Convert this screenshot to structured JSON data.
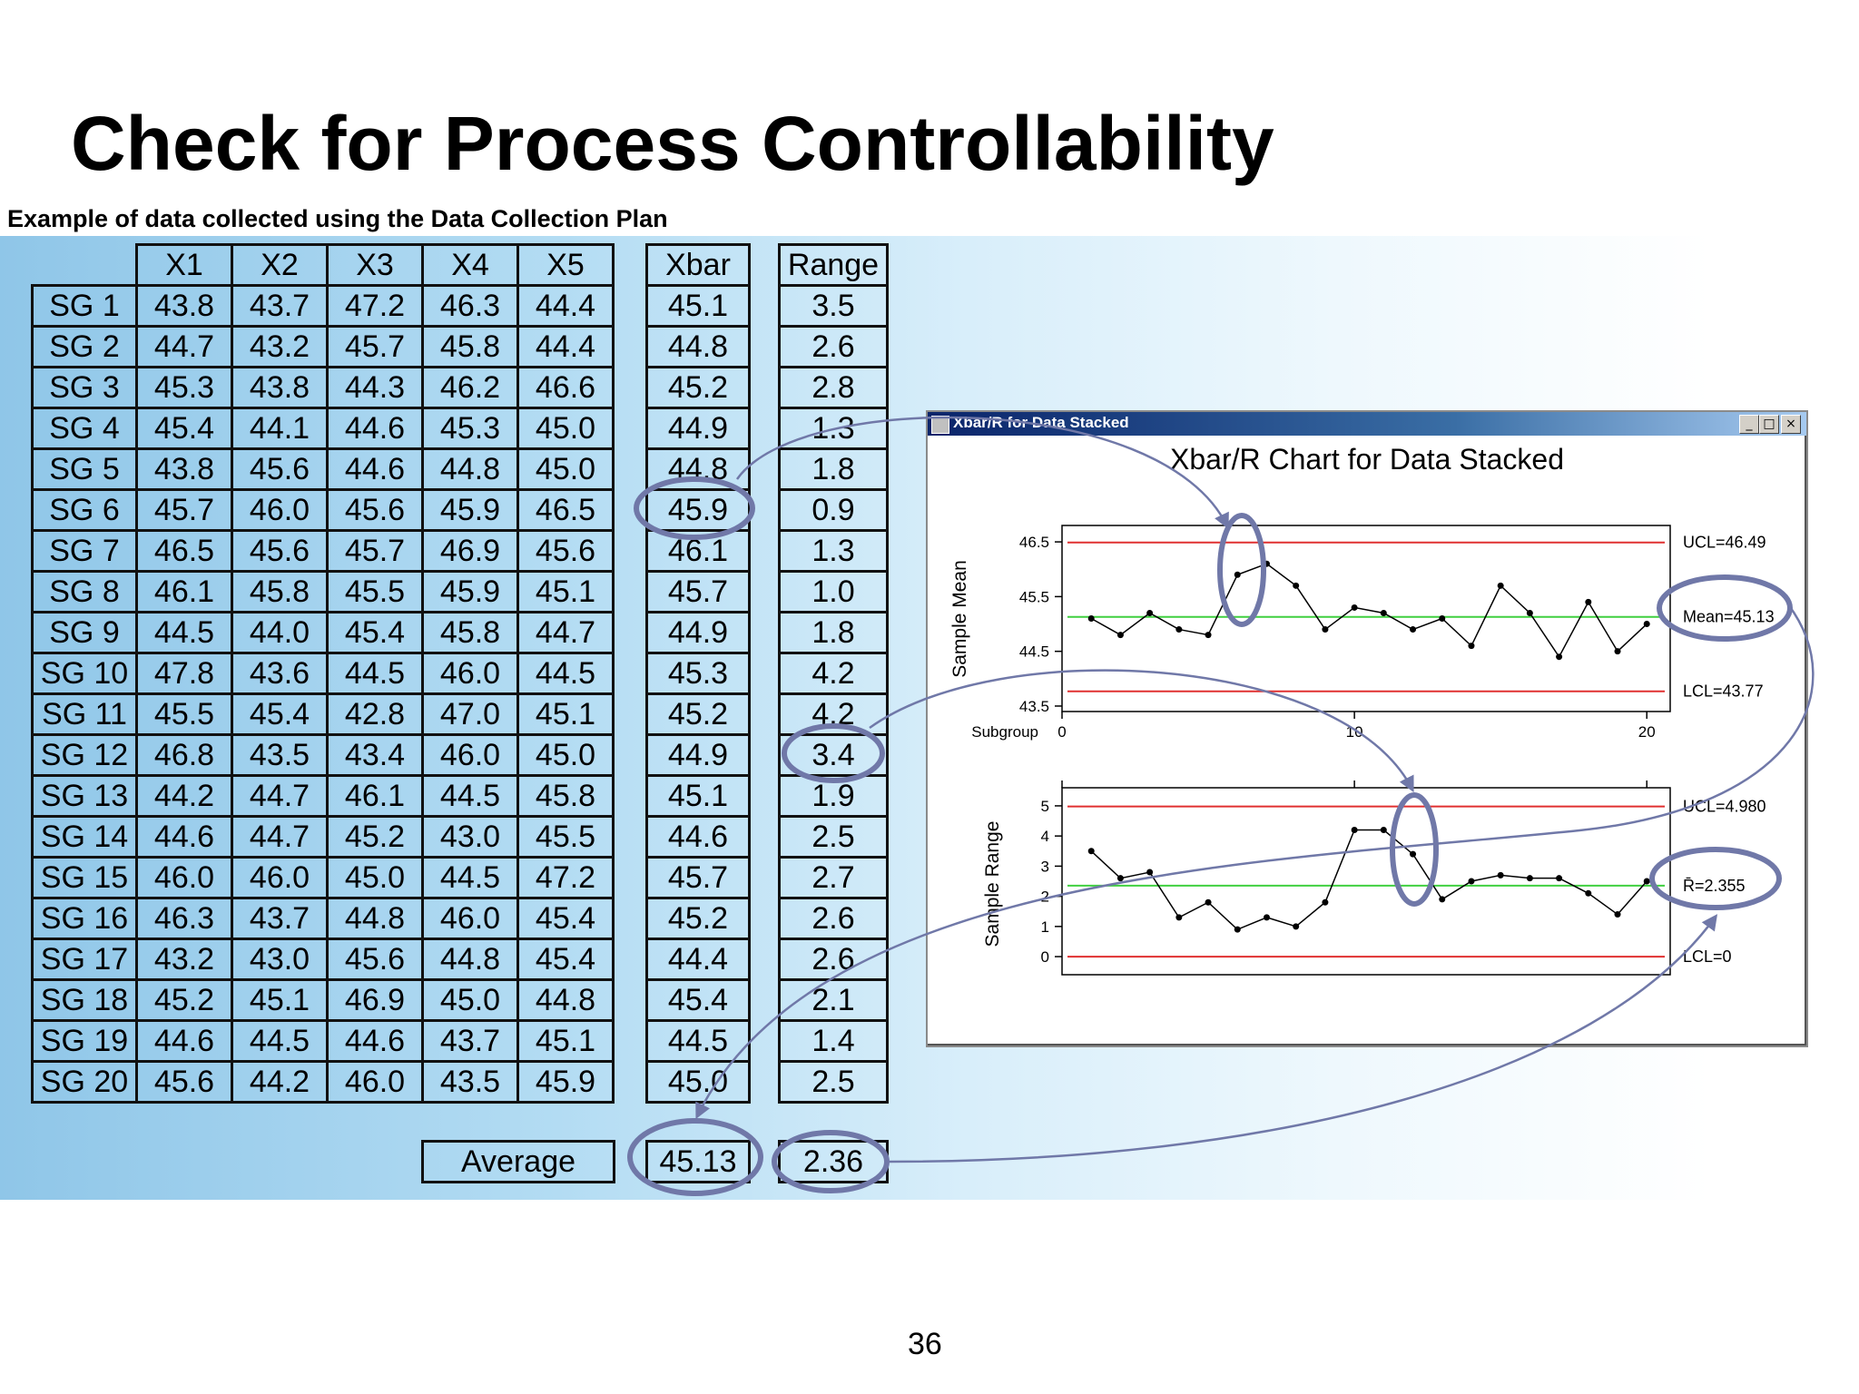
{
  "slide": {
    "title": "Check for Process Controllability",
    "subtitle": "Example of data collected using the Data Collection Plan",
    "page_number": "36"
  },
  "table": {
    "headers": [
      "X1",
      "X2",
      "X3",
      "X4",
      "X5"
    ],
    "xbar_header": "Xbar",
    "range_header": "Range",
    "rows": [
      {
        "label": "SG 1",
        "x": [
          "43.8",
          "43.7",
          "47.2",
          "46.3",
          "44.4"
        ],
        "xbar": "45.1",
        "range": "3.5"
      },
      {
        "label": "SG 2",
        "x": [
          "44.7",
          "43.2",
          "45.7",
          "45.8",
          "44.4"
        ],
        "xbar": "44.8",
        "range": "2.6"
      },
      {
        "label": "SG 3",
        "x": [
          "45.3",
          "43.8",
          "44.3",
          "46.2",
          "46.6"
        ],
        "xbar": "45.2",
        "range": "2.8"
      },
      {
        "label": "SG 4",
        "x": [
          "45.4",
          "44.1",
          "44.6",
          "45.3",
          "45.0"
        ],
        "xbar": "44.9",
        "range": "1.3"
      },
      {
        "label": "SG 5",
        "x": [
          "43.8",
          "45.6",
          "44.6",
          "44.8",
          "45.0"
        ],
        "xbar": "44.8",
        "range": "1.8"
      },
      {
        "label": "SG 6",
        "x": [
          "45.7",
          "46.0",
          "45.6",
          "45.9",
          "46.5"
        ],
        "xbar": "45.9",
        "range": "0.9"
      },
      {
        "label": "SG 7",
        "x": [
          "46.5",
          "45.6",
          "45.7",
          "46.9",
          "45.6"
        ],
        "xbar": "46.1",
        "range": "1.3"
      },
      {
        "label": "SG 8",
        "x": [
          "46.1",
          "45.8",
          "45.5",
          "45.9",
          "45.1"
        ],
        "xbar": "45.7",
        "range": "1.0"
      },
      {
        "label": "SG 9",
        "x": [
          "44.5",
          "44.0",
          "45.4",
          "45.8",
          "44.7"
        ],
        "xbar": "44.9",
        "range": "1.8"
      },
      {
        "label": "SG 10",
        "x": [
          "47.8",
          "43.6",
          "44.5",
          "46.0",
          "44.5"
        ],
        "xbar": "45.3",
        "range": "4.2"
      },
      {
        "label": "SG 11",
        "x": [
          "45.5",
          "45.4",
          "42.8",
          "47.0",
          "45.1"
        ],
        "xbar": "45.2",
        "range": "4.2"
      },
      {
        "label": "SG 12",
        "x": [
          "46.8",
          "43.5",
          "43.4",
          "46.0",
          "45.0"
        ],
        "xbar": "44.9",
        "range": "3.4"
      },
      {
        "label": "SG 13",
        "x": [
          "44.2",
          "44.7",
          "46.1",
          "44.5",
          "45.8"
        ],
        "xbar": "45.1",
        "range": "1.9"
      },
      {
        "label": "SG 14",
        "x": [
          "44.6",
          "44.7",
          "45.2",
          "43.0",
          "45.5"
        ],
        "xbar": "44.6",
        "range": "2.5"
      },
      {
        "label": "SG 15",
        "x": [
          "46.0",
          "46.0",
          "45.0",
          "44.5",
          "47.2"
        ],
        "xbar": "45.7",
        "range": "2.7"
      },
      {
        "label": "SG 16",
        "x": [
          "46.3",
          "43.7",
          "44.8",
          "46.0",
          "45.4"
        ],
        "xbar": "45.2",
        "range": "2.6"
      },
      {
        "label": "SG 17",
        "x": [
          "43.2",
          "43.0",
          "45.6",
          "44.8",
          "45.4"
        ],
        "xbar": "44.4",
        "range": "2.6"
      },
      {
        "label": "SG 18",
        "x": [
          "45.2",
          "45.1",
          "46.9",
          "45.0",
          "44.8"
        ],
        "xbar": "45.4",
        "range": "2.1"
      },
      {
        "label": "SG 19",
        "x": [
          "44.6",
          "44.5",
          "44.6",
          "43.7",
          "45.1"
        ],
        "xbar": "44.5",
        "range": "1.4"
      },
      {
        "label": "SG 20",
        "x": [
          "45.6",
          "44.2",
          "46.0",
          "43.5",
          "45.9"
        ],
        "xbar": "45.0",
        "range": "2.5"
      }
    ],
    "average_label": "Average",
    "average_xbar": "45.13",
    "average_range": "2.36"
  },
  "window": {
    "title_bar": "Xbar/R for Data Stacked",
    "minimize_glyph": "_",
    "maximize_glyph": "□",
    "close_glyph": "×",
    "chart_title": "Xbar/R Chart for Data Stacked"
  },
  "chart_data": [
    {
      "type": "line",
      "ylabel": "Sample Mean",
      "xlabel": "Subgroup",
      "x": [
        1,
        2,
        3,
        4,
        5,
        6,
        7,
        8,
        9,
        10,
        11,
        12,
        13,
        14,
        15,
        16,
        17,
        18,
        19,
        20
      ],
      "values": [
        45.1,
        44.8,
        45.2,
        44.9,
        44.8,
        45.9,
        46.1,
        45.7,
        44.9,
        45.3,
        45.2,
        44.9,
        45.1,
        44.6,
        45.7,
        45.2,
        44.4,
        45.4,
        44.5,
        45.0
      ],
      "ylim": [
        43.4,
        46.8
      ],
      "yticks": [
        "43.5",
        "44.5",
        "45.5",
        "46.5"
      ],
      "xticks": [
        "0",
        "10",
        "20"
      ],
      "control_lines": {
        "ucl": 46.49,
        "center": 45.13,
        "lcl": 43.77
      },
      "control_labels": {
        "ucl": "UCL=46.49",
        "center": "Mean=45.13",
        "lcl": "LCL=43.77"
      },
      "colors": {
        "limit": "#e03030",
        "center": "#40d040",
        "line": "#000000"
      }
    },
    {
      "type": "line",
      "ylabel": "Sample Range",
      "x": [
        1,
        2,
        3,
        4,
        5,
        6,
        7,
        8,
        9,
        10,
        11,
        12,
        13,
        14,
        15,
        16,
        17,
        18,
        19,
        20
      ],
      "values": [
        3.5,
        2.6,
        2.8,
        1.3,
        1.8,
        0.9,
        1.3,
        1.0,
        1.8,
        4.2,
        4.2,
        3.4,
        1.9,
        2.5,
        2.7,
        2.6,
        2.6,
        2.1,
        1.4,
        2.5
      ],
      "ylim": [
        -0.6,
        5.6
      ],
      "yticks": [
        "0",
        "1",
        "2",
        "3",
        "4",
        "5"
      ],
      "control_lines": {
        "ucl": 4.98,
        "center": 2.355,
        "lcl": 0
      },
      "control_labels": {
        "ucl": "UCL=4.980",
        "center": "R̄=2.355",
        "lcl": "LCL=0"
      },
      "colors": {
        "limit": "#e03030",
        "center": "#40d040",
        "line": "#000000"
      }
    }
  ],
  "annotation_color": "#7078a8"
}
